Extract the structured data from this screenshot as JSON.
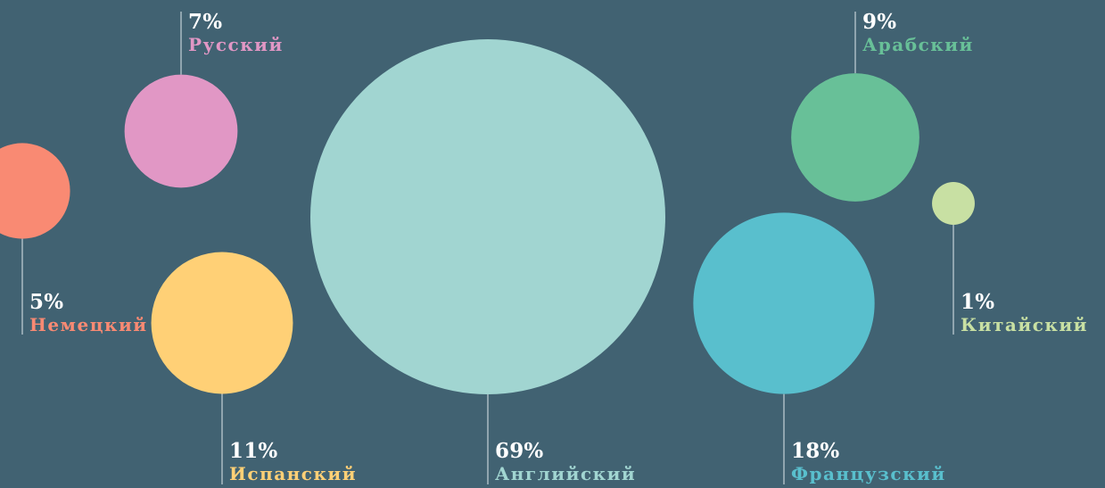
{
  "chart_data": {
    "type": "bubble",
    "title": "",
    "unit": "%",
    "background": "#416272",
    "line_color": "#dfe8ec",
    "series": [
      {
        "name": "Английский",
        "value": 69,
        "value_label": "69%",
        "color": "#a1d5d1"
      },
      {
        "name": "Французский",
        "value": 18,
        "value_label": "18%",
        "color": "#59bfcd"
      },
      {
        "name": "Испанский",
        "value": 11,
        "value_label": "11%",
        "color": "#ffd076"
      },
      {
        "name": "Арабский",
        "value": 9,
        "value_label": "9%",
        "color": "#68c098"
      },
      {
        "name": "Русский",
        "value": 7,
        "value_label": "7%",
        "color": "#e197c5"
      },
      {
        "name": "Немецкий",
        "value": 5,
        "value_label": "5%",
        "color": "#f98a73"
      },
      {
        "name": "Китайский",
        "value": 1,
        "value_label": "1%",
        "color": "#c8e0a3"
      }
    ]
  }
}
